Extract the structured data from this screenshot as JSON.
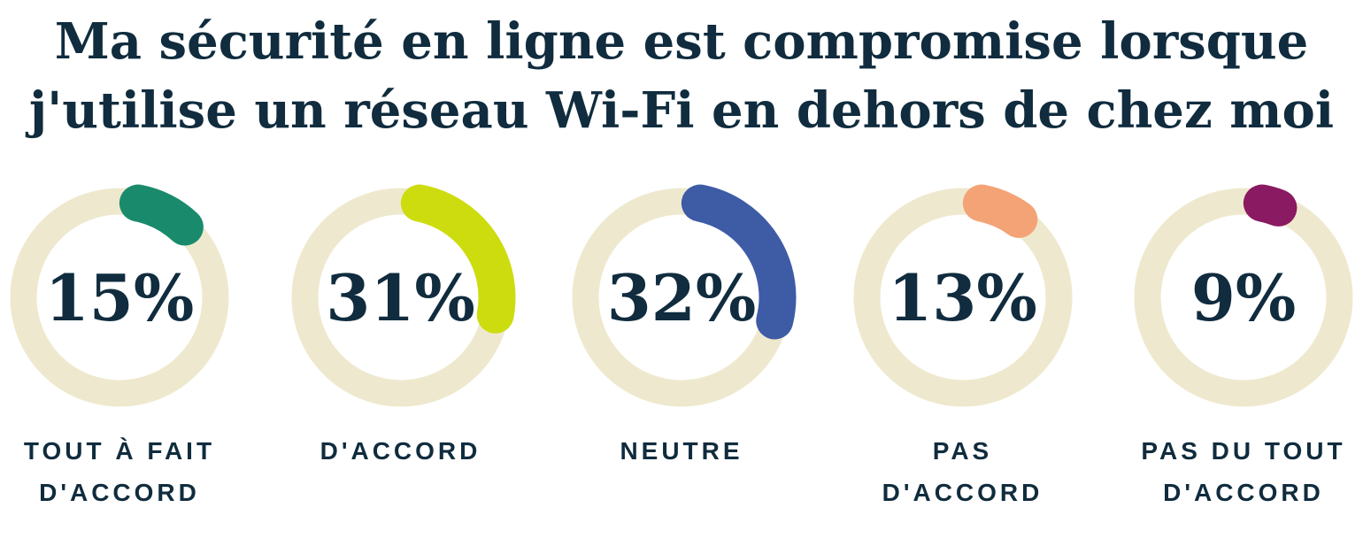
{
  "title": {
    "line1": "Ma sécurité en ligne est compromise lorsque",
    "line2": "j'utilise un réseau Wi-Fi en dehors de chez moi"
  },
  "colors": {
    "text_navy": "#102C3E",
    "ring_track": "#EEE9CE"
  },
  "chart_data": {
    "type": "pie",
    "variant": "donut-progress-multiples",
    "title": "Ma sécurité en ligne est compromise lorsque j'utilise un réseau Wi-Fi en dehors de chez moi",
    "categories": [
      "TOUT À FAIT D'ACCORD",
      "D'ACCORD",
      "NEUTRE",
      "PAS D'ACCORD",
      "PAS DU TOUT D'ACCORD"
    ],
    "values": [
      15,
      31,
      32,
      13,
      9
    ],
    "unit": "%",
    "percent_labels": [
      "15%",
      "31%",
      "32%",
      "13%",
      "9%"
    ],
    "label_lines": [
      [
        "TOUT À FAIT",
        "D'ACCORD"
      ],
      [
        "D'ACCORD"
      ],
      [
        "NEUTRE"
      ],
      [
        "PAS",
        "D'ACCORD"
      ],
      [
        "PAS DU TOUT",
        "D'ACCORD"
      ]
    ],
    "colors": [
      "#1A8A6D",
      "#CDDC0F",
      "#3E5BA6",
      "#F4A377",
      "#8A1A61"
    ],
    "ring_track_color": "#EEE9CE",
    "value_label_position": "center",
    "arc_start": "top",
    "direction": "clockwise",
    "legend_position": "below-each-donut",
    "grid": false
  }
}
